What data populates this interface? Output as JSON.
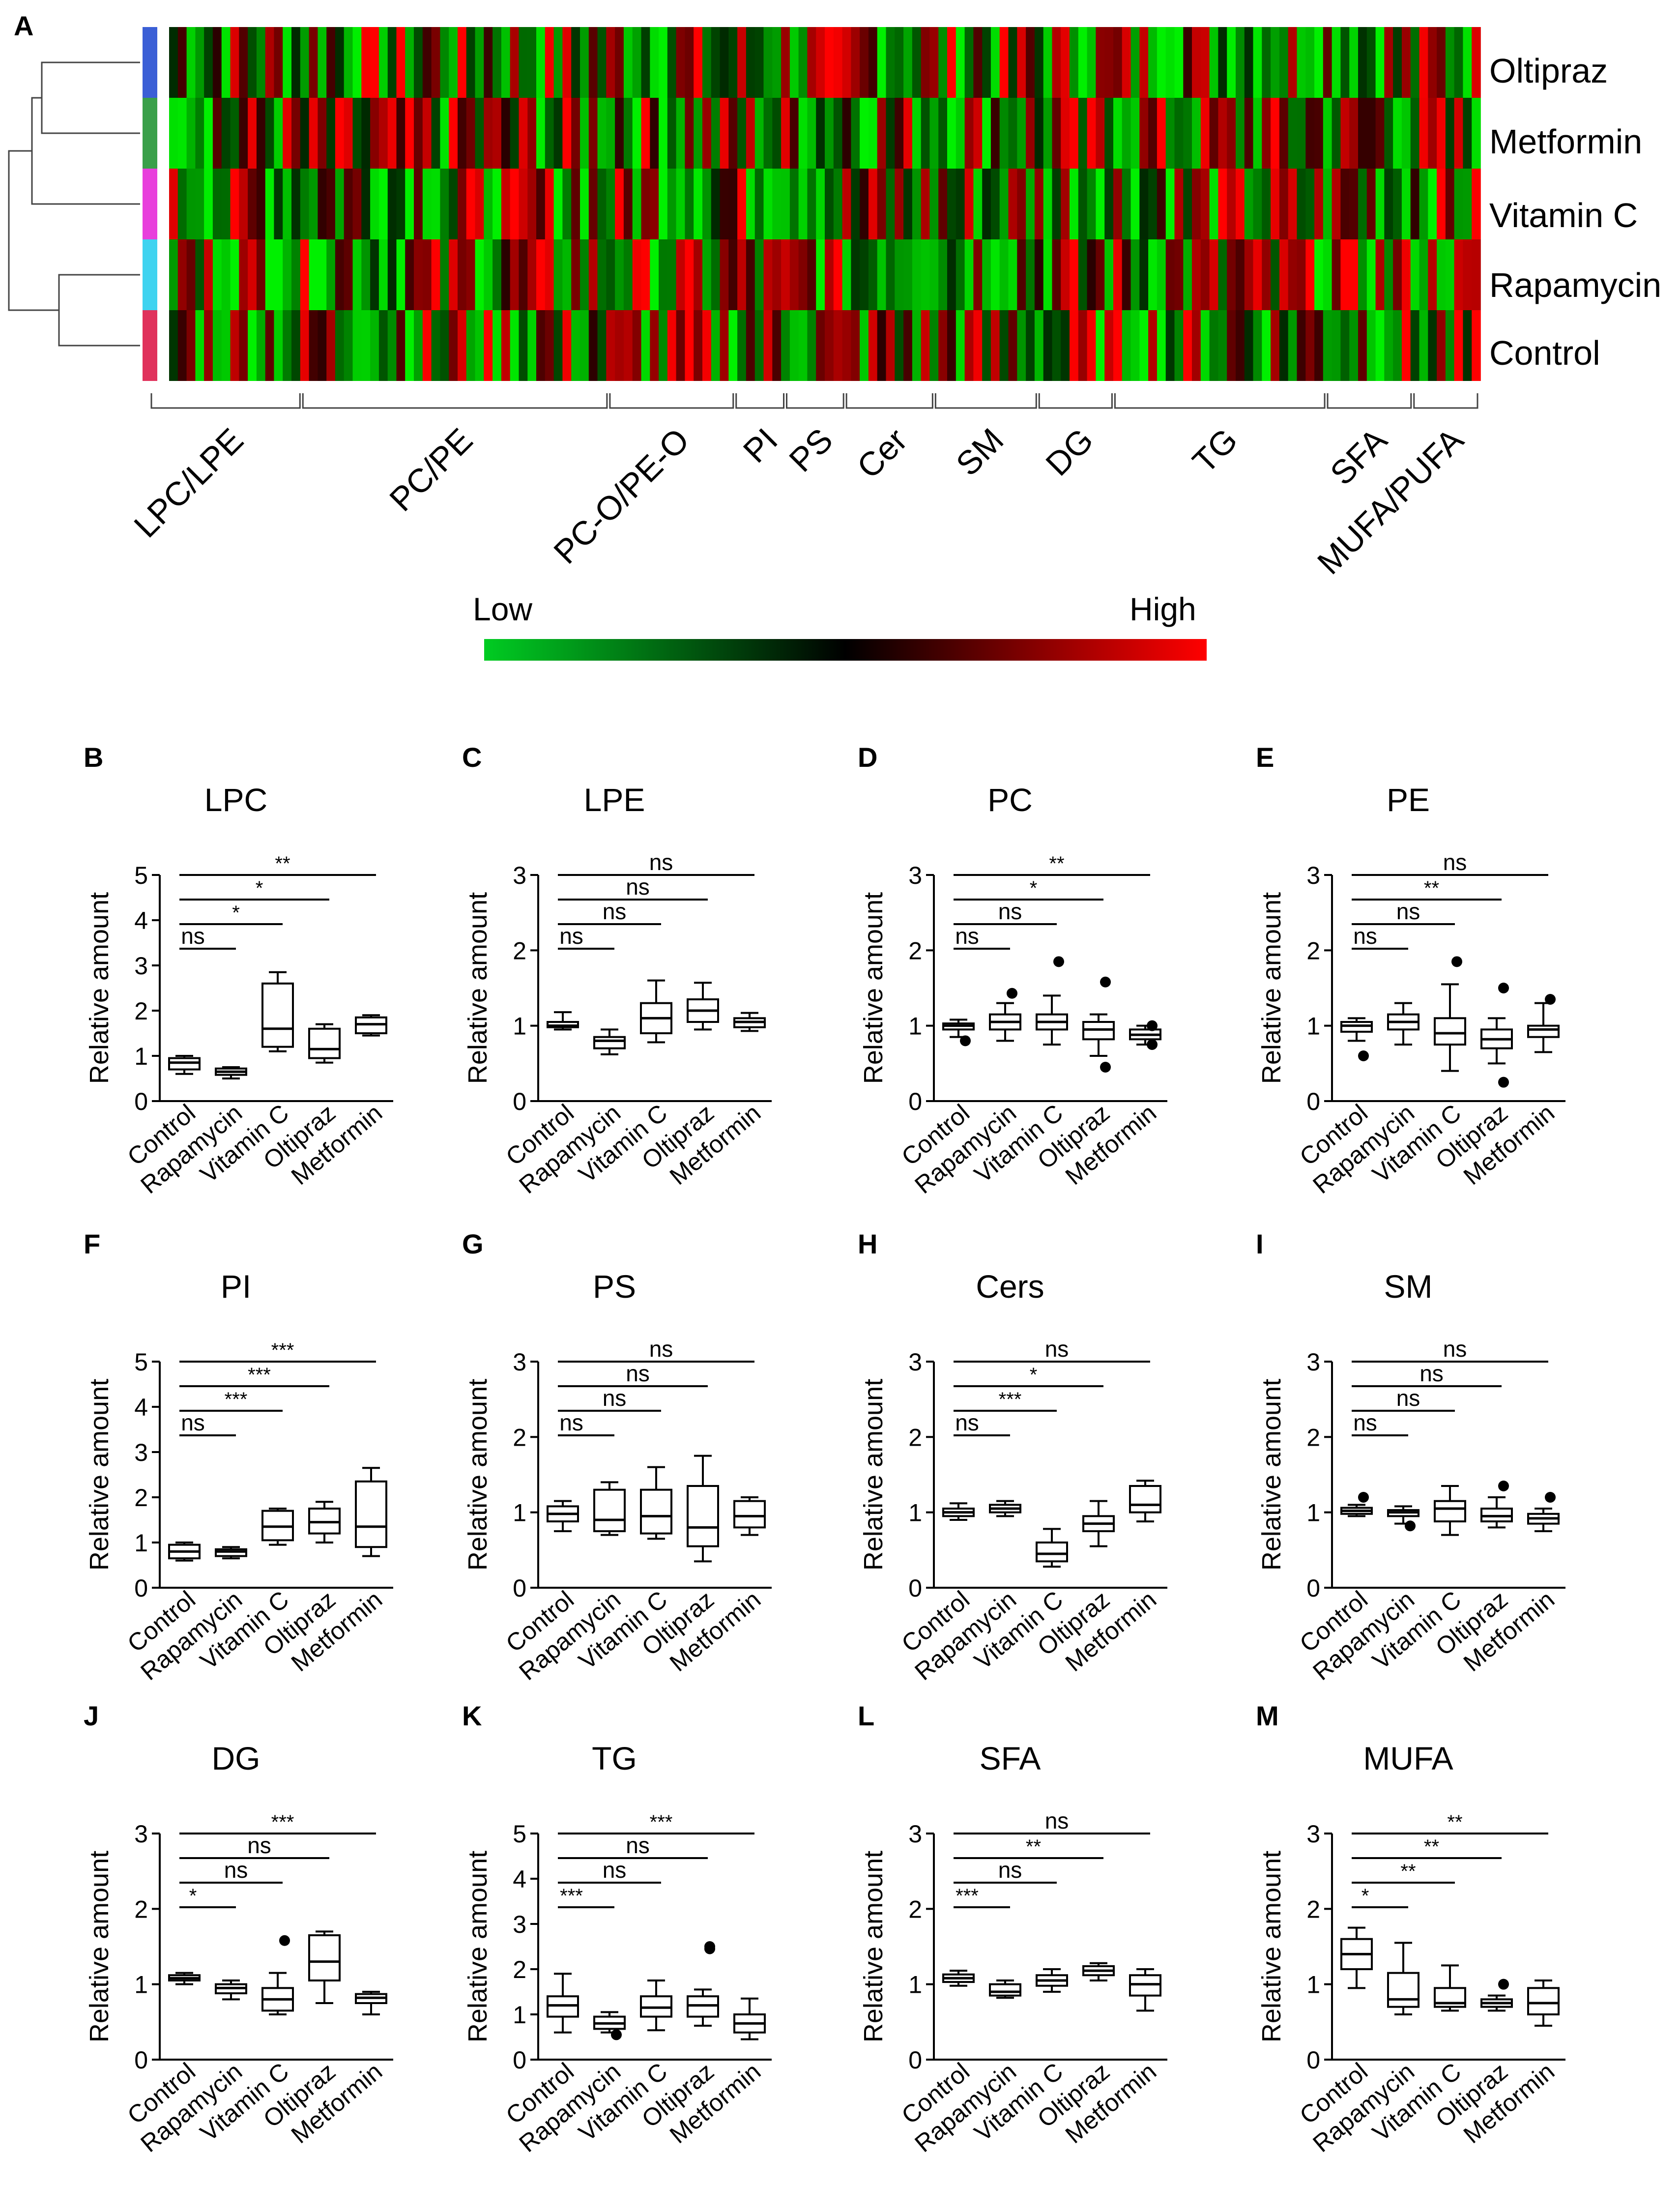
{
  "figure": {
    "panel_letters": [
      "A",
      "B",
      "C",
      "D",
      "E",
      "F",
      "G",
      "H",
      "I",
      "J",
      "K",
      "L",
      "M"
    ]
  },
  "heatmap": {
    "panel": "A",
    "rows": [
      "Oltipraz",
      "Metformin",
      "Vitamin C",
      "Rapamycin",
      "Control"
    ],
    "row_colors": [
      "#3b5fd6",
      "#3aa04a",
      "#e83fdc",
      "#3fd3f0",
      "#e0325c"
    ],
    "groups": [
      {
        "label": "LPC/LPE",
        "start": 0.0,
        "end": 0.114
      },
      {
        "label": "PC/PE",
        "start": 0.114,
        "end": 0.345
      },
      {
        "label": "PC-O/PE-O",
        "start": 0.345,
        "end": 0.44
      },
      {
        "label": "PI",
        "start": 0.44,
        "end": 0.478
      },
      {
        "label": "PS",
        "start": 0.478,
        "end": 0.523
      },
      {
        "label": "Cer",
        "start": 0.523,
        "end": 0.59
      },
      {
        "label": "SM",
        "start": 0.59,
        "end": 0.668
      },
      {
        "label": "DG",
        "start": 0.668,
        "end": 0.725
      },
      {
        "label": "TG",
        "start": 0.725,
        "end": 0.885
      },
      {
        "label": "SFA",
        "start": 0.885,
        "end": 0.95
      },
      {
        "label": "MUFA/PUFA",
        "start": 0.95,
        "end": 1.0
      }
    ],
    "legend": {
      "low": "Low",
      "high": "High",
      "low_color": "#00cc22",
      "mid_color": "#000000",
      "high_color": "#ff0000"
    }
  },
  "chart_data": [
    {
      "panel": "B",
      "type": "boxplot",
      "title": "LPC",
      "ylabel": "Relative amount",
      "ylim": [
        0,
        5
      ],
      "yticks": [
        0,
        1,
        2,
        3,
        4,
        5
      ],
      "categories": [
        "Control",
        "Rapamycin",
        "Vitamin C",
        "Oltipraz",
        "Metformin"
      ],
      "boxes": [
        [
          0.6,
          0.7,
          0.85,
          0.95,
          1.0
        ],
        [
          0.5,
          0.58,
          0.65,
          0.72,
          0.75
        ],
        [
          1.1,
          1.2,
          1.6,
          2.6,
          2.85
        ],
        [
          0.85,
          0.95,
          1.15,
          1.6,
          1.7
        ],
        [
          1.45,
          1.5,
          1.7,
          1.85,
          1.9
        ]
      ],
      "outliers": [
        [],
        [],
        [],
        [],
        []
      ],
      "comparisons": [
        {
          "label": "ns",
          "to": 1
        },
        {
          "label": "*",
          "to": 2
        },
        {
          "label": "*",
          "to": 3
        },
        {
          "label": "**",
          "to": 4
        }
      ]
    },
    {
      "panel": "C",
      "type": "boxplot",
      "title": "LPE",
      "ylabel": "Relative amount",
      "ylim": [
        0,
        3
      ],
      "yticks": [
        0,
        1,
        2,
        3
      ],
      "categories": [
        "Control",
        "Rapamycin",
        "Vitamin C",
        "Oltipraz",
        "Metformin"
      ],
      "boxes": [
        [
          0.95,
          0.98,
          1.0,
          1.05,
          1.18
        ],
        [
          0.62,
          0.7,
          0.8,
          0.85,
          0.95
        ],
        [
          0.78,
          0.9,
          1.1,
          1.3,
          1.6
        ],
        [
          0.95,
          1.05,
          1.2,
          1.35,
          1.57
        ],
        [
          0.93,
          0.98,
          1.05,
          1.1,
          1.17
        ]
      ],
      "outliers": [
        [],
        [],
        [],
        [],
        []
      ],
      "comparisons": [
        {
          "label": "ns",
          "to": 1
        },
        {
          "label": "ns",
          "to": 2
        },
        {
          "label": "ns",
          "to": 3
        },
        {
          "label": "ns",
          "to": 4
        }
      ]
    },
    {
      "panel": "D",
      "type": "boxplot",
      "title": "PC",
      "ylabel": "Relative amount",
      "ylim": [
        0,
        3
      ],
      "yticks": [
        0,
        1,
        2,
        3
      ],
      "categories": [
        "Control",
        "Rapamycin",
        "Vitamin C",
        "Oltipraz",
        "Metformin"
      ],
      "boxes": [
        [
          0.85,
          0.95,
          1.0,
          1.03,
          1.08
        ],
        [
          0.8,
          0.95,
          1.05,
          1.15,
          1.3
        ],
        [
          0.75,
          0.95,
          1.05,
          1.15,
          1.4
        ],
        [
          0.6,
          0.82,
          0.95,
          1.05,
          1.15
        ],
        [
          0.75,
          0.82,
          0.88,
          0.95,
          1.0
        ]
      ],
      "outliers": [
        [
          0.8
        ],
        [
          1.43
        ],
        [
          1.85
        ],
        [
          1.58,
          0.45
        ],
        [
          1.0,
          0.75
        ]
      ],
      "comparisons": [
        {
          "label": "ns",
          "to": 1
        },
        {
          "label": "ns",
          "to": 2
        },
        {
          "label": "*",
          "to": 3
        },
        {
          "label": "**",
          "to": 4
        }
      ]
    },
    {
      "panel": "E",
      "type": "boxplot",
      "title": "PE",
      "ylabel": "Relative amount",
      "ylim": [
        0,
        3
      ],
      "yticks": [
        0,
        1,
        2,
        3
      ],
      "categories": [
        "Control",
        "Rapamycin",
        "Vitamin C",
        "Oltipraz",
        "Metformin"
      ],
      "boxes": [
        [
          0.8,
          0.92,
          1.0,
          1.05,
          1.1
        ],
        [
          0.75,
          0.95,
          1.05,
          1.15,
          1.3
        ],
        [
          0.4,
          0.75,
          0.9,
          1.1,
          1.55
        ],
        [
          0.5,
          0.7,
          0.82,
          0.95,
          1.1
        ],
        [
          0.65,
          0.85,
          0.95,
          1.0,
          1.3
        ]
      ],
      "outliers": [
        [
          0.6
        ],
        [],
        [
          1.85
        ],
        [
          1.5,
          0.25
        ],
        [
          1.35
        ]
      ],
      "comparisons": [
        {
          "label": "ns",
          "to": 1
        },
        {
          "label": "ns",
          "to": 2
        },
        {
          "label": "**",
          "to": 3
        },
        {
          "label": "ns",
          "to": 4
        }
      ]
    },
    {
      "panel": "F",
      "type": "boxplot",
      "title": "PI",
      "ylabel": "Relative amount",
      "ylim": [
        0,
        5
      ],
      "yticks": [
        0,
        1,
        2,
        3,
        4,
        5
      ],
      "categories": [
        "Control",
        "Rapamycin",
        "Vitamin C",
        "Oltipraz",
        "Metformin"
      ],
      "boxes": [
        [
          0.6,
          0.65,
          0.8,
          0.95,
          1.0
        ],
        [
          0.65,
          0.7,
          0.8,
          0.85,
          0.9
        ],
        [
          0.95,
          1.05,
          1.35,
          1.7,
          1.75
        ],
        [
          1.0,
          1.2,
          1.45,
          1.75,
          1.9
        ],
        [
          0.7,
          0.9,
          1.35,
          2.35,
          2.65
        ]
      ],
      "outliers": [
        [],
        [],
        [],
        [],
        []
      ],
      "comparisons": [
        {
          "label": "ns",
          "to": 1
        },
        {
          "label": "***",
          "to": 2
        },
        {
          "label": "***",
          "to": 3
        },
        {
          "label": "***",
          "to": 4
        }
      ]
    },
    {
      "panel": "G",
      "type": "boxplot",
      "title": "PS",
      "ylabel": "Relative amount",
      "ylim": [
        0,
        3
      ],
      "yticks": [
        0,
        1,
        2,
        3
      ],
      "categories": [
        "Control",
        "Rapamycin",
        "Vitamin C",
        "Oltipraz",
        "Metformin"
      ],
      "boxes": [
        [
          0.75,
          0.88,
          0.98,
          1.08,
          1.15
        ],
        [
          0.7,
          0.75,
          0.9,
          1.3,
          1.4
        ],
        [
          0.65,
          0.72,
          0.95,
          1.3,
          1.6
        ],
        [
          0.35,
          0.55,
          0.8,
          1.35,
          1.75
        ],
        [
          0.7,
          0.8,
          0.95,
          1.15,
          1.2
        ]
      ],
      "outliers": [
        [],
        [],
        [],
        [],
        []
      ],
      "comparisons": [
        {
          "label": "ns",
          "to": 1
        },
        {
          "label": "ns",
          "to": 2
        },
        {
          "label": "ns",
          "to": 3
        },
        {
          "label": "ns",
          "to": 4
        }
      ]
    },
    {
      "panel": "H",
      "type": "boxplot",
      "title": "Cers",
      "ylabel": "Relative amount",
      "ylim": [
        0,
        3
      ],
      "yticks": [
        0,
        1,
        2,
        3
      ],
      "categories": [
        "Control",
        "Rapamycin",
        "Vitamin C",
        "Oltipraz",
        "Metformin"
      ],
      "boxes": [
        [
          0.9,
          0.95,
          1.0,
          1.05,
          1.12
        ],
        [
          0.95,
          1.0,
          1.05,
          1.1,
          1.15
        ],
        [
          0.28,
          0.35,
          0.45,
          0.6,
          0.78
        ],
        [
          0.55,
          0.75,
          0.85,
          0.95,
          1.15
        ],
        [
          0.88,
          1.0,
          1.1,
          1.35,
          1.42
        ]
      ],
      "outliers": [
        [],
        [],
        [],
        [],
        []
      ],
      "comparisons": [
        {
          "label": "ns",
          "to": 1
        },
        {
          "label": "***",
          "to": 2
        },
        {
          "label": "*",
          "to": 3
        },
        {
          "label": "ns",
          "to": 4
        }
      ]
    },
    {
      "panel": "I",
      "type": "boxplot",
      "title": "SM",
      "ylabel": "Relative amount",
      "ylim": [
        0,
        3
      ],
      "yticks": [
        0,
        1,
        2,
        3
      ],
      "categories": [
        "Control",
        "Rapamycin",
        "Vitamin C",
        "Oltipraz",
        "Metformin"
      ],
      "boxes": [
        [
          0.95,
          0.98,
          1.02,
          1.06,
          1.1
        ],
        [
          0.85,
          0.95,
          1.0,
          1.03,
          1.08
        ],
        [
          0.7,
          0.88,
          1.05,
          1.15,
          1.35
        ],
        [
          0.8,
          0.88,
          0.95,
          1.05,
          1.2
        ],
        [
          0.75,
          0.85,
          0.92,
          0.98,
          1.05
        ]
      ],
      "outliers": [
        [
          1.2
        ],
        [
          0.82
        ],
        [],
        [
          1.35
        ],
        [
          1.2
        ]
      ],
      "comparisons": [
        {
          "label": "ns",
          "to": 1
        },
        {
          "label": "ns",
          "to": 2
        },
        {
          "label": "ns",
          "to": 3
        },
        {
          "label": "ns",
          "to": 4
        }
      ]
    },
    {
      "panel": "J",
      "type": "boxplot",
      "title": "DG",
      "ylabel": "Relative amount",
      "ylim": [
        0,
        3
      ],
      "yticks": [
        0,
        1,
        2,
        3
      ],
      "categories": [
        "Control",
        "Rapamycin",
        "Vitamin C",
        "Oltipraz",
        "Metformin"
      ],
      "boxes": [
        [
          1.0,
          1.05,
          1.08,
          1.12,
          1.15
        ],
        [
          0.8,
          0.88,
          0.95,
          1.0,
          1.05
        ],
        [
          0.6,
          0.65,
          0.8,
          0.95,
          1.15
        ],
        [
          0.75,
          1.05,
          1.3,
          1.65,
          1.7
        ],
        [
          0.6,
          0.75,
          0.82,
          0.87,
          0.9
        ]
      ],
      "outliers": [
        [],
        [],
        [
          1.58
        ],
        [],
        []
      ],
      "comparisons": [
        {
          "label": "*",
          "to": 1
        },
        {
          "label": "ns",
          "to": 2
        },
        {
          "label": "ns",
          "to": 3
        },
        {
          "label": "***",
          "to": 4
        }
      ]
    },
    {
      "panel": "K",
      "type": "boxplot",
      "title": "TG",
      "ylabel": "Relative amount",
      "ylim": [
        0,
        5
      ],
      "yticks": [
        0,
        1,
        2,
        3,
        4,
        5
      ],
      "categories": [
        "Control",
        "Rapamycin",
        "Vitamin C",
        "Oltipraz",
        "Metformin"
      ],
      "boxes": [
        [
          0.6,
          0.95,
          1.2,
          1.4,
          1.9
        ],
        [
          0.6,
          0.68,
          0.8,
          0.95,
          1.05
        ],
        [
          0.65,
          0.95,
          1.15,
          1.4,
          1.75
        ],
        [
          0.75,
          0.95,
          1.2,
          1.4,
          1.55
        ],
        [
          0.45,
          0.6,
          0.8,
          1.0,
          1.35
        ]
      ],
      "outliers": [
        [],
        [
          0.55
        ],
        [],
        [
          2.45,
          2.5
        ],
        []
      ],
      "comparisons": [
        {
          "label": "***",
          "to": 1
        },
        {
          "label": "ns",
          "to": 2
        },
        {
          "label": "ns",
          "to": 3
        },
        {
          "label": "***",
          "to": 4
        }
      ]
    },
    {
      "panel": "L",
      "type": "boxplot",
      "title": "SFA",
      "ylabel": "Relative amount",
      "ylim": [
        0,
        3
      ],
      "yticks": [
        0,
        1,
        2,
        3
      ],
      "categories": [
        "Control",
        "Rapamycin",
        "Vitamin C",
        "Oltipraz",
        "Metformin"
      ],
      "boxes": [
        [
          0.98,
          1.03,
          1.08,
          1.13,
          1.18
        ],
        [
          0.82,
          0.85,
          0.9,
          1.0,
          1.05
        ],
        [
          0.9,
          0.98,
          1.05,
          1.12,
          1.2
        ],
        [
          1.05,
          1.12,
          1.18,
          1.24,
          1.28
        ],
        [
          0.65,
          0.85,
          1.0,
          1.12,
          1.2
        ]
      ],
      "outliers": [
        [],
        [],
        [],
        [],
        []
      ],
      "comparisons": [
        {
          "label": "***",
          "to": 1
        },
        {
          "label": "ns",
          "to": 2
        },
        {
          "label": "**",
          "to": 3
        },
        {
          "label": "ns",
          "to": 4
        }
      ]
    },
    {
      "panel": "M",
      "type": "boxplot",
      "title": "MUFA",
      "ylabel": "Relative amount",
      "ylim": [
        0,
        3
      ],
      "yticks": [
        0,
        1,
        2,
        3
      ],
      "categories": [
        "Control",
        "Rapamycin",
        "Vitamin C",
        "Oltipraz",
        "Metformin"
      ],
      "boxes": [
        [
          0.95,
          1.2,
          1.4,
          1.6,
          1.75
        ],
        [
          0.6,
          0.7,
          0.8,
          1.15,
          1.55
        ],
        [
          0.65,
          0.7,
          0.75,
          0.95,
          1.25
        ],
        [
          0.65,
          0.7,
          0.75,
          0.8,
          0.85
        ],
        [
          0.45,
          0.6,
          0.75,
          0.95,
          1.05
        ]
      ],
      "outliers": [
        [],
        [],
        [],
        [
          1.0
        ],
        []
      ],
      "comparisons": [
        {
          "label": "*",
          "to": 1
        },
        {
          "label": "**",
          "to": 2
        },
        {
          "label": "**",
          "to": 3
        },
        {
          "label": "**",
          "to": 4
        }
      ]
    }
  ]
}
